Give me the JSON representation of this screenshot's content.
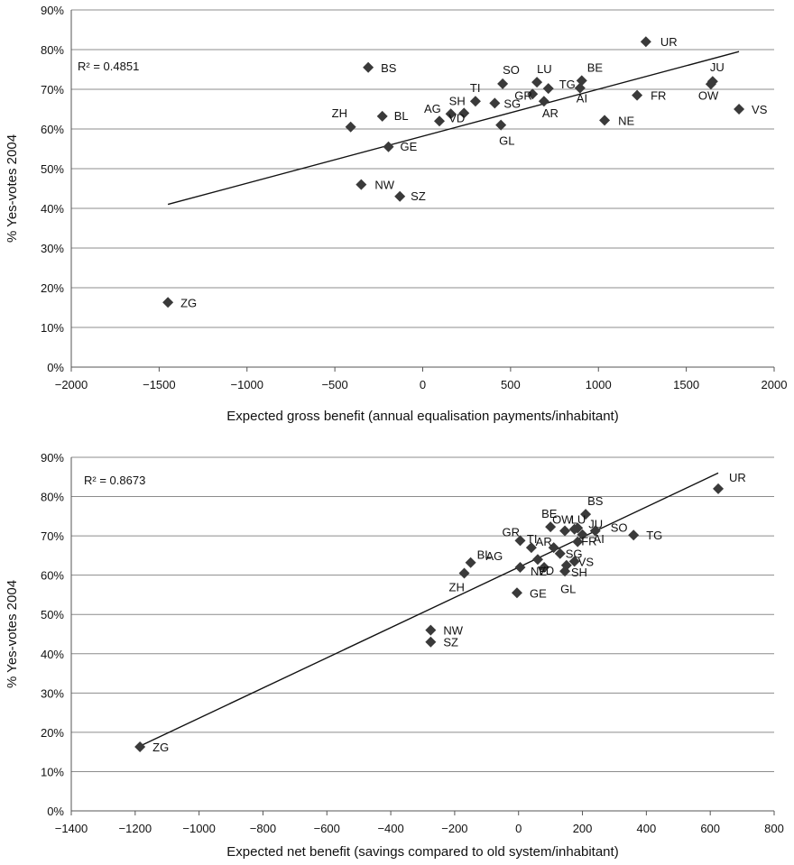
{
  "chart_data": [
    {
      "type": "scatter",
      "title": "",
      "xlabel": "Expected gross benefit (annual equalisation payments/inhabitant)",
      "ylabel": "% Yes-votes 2004",
      "xlim": [
        -2000,
        2000
      ],
      "ylim": [
        0,
        90
      ],
      "xticks": [
        -2000,
        -1500,
        -1000,
        -500,
        0,
        500,
        1000,
        1500,
        2000
      ],
      "xtick_labels": [
        "−2000",
        "−1500",
        "−1000",
        "−500",
        "0",
        "500",
        "1000",
        "1500",
        "2000"
      ],
      "yticks": [
        0,
        10,
        20,
        30,
        40,
        50,
        60,
        70,
        80,
        90
      ],
      "ytick_labels": [
        "0%",
        "10%",
        "20%",
        "30%",
        "40%",
        "50%",
        "60%",
        "70%",
        "80%",
        "90%"
      ],
      "grid": true,
      "r2_label": "R² = 0.4851",
      "trendline": [
        [
          -1450,
          41.0
        ],
        [
          1800,
          79.5
        ]
      ],
      "points": [
        {
          "label": "UR",
          "x": 1270,
          "y": 82.0
        },
        {
          "label": "BS",
          "x": -310,
          "y": 75.5
        },
        {
          "label": "JU",
          "x": 1650,
          "y": 72.0
        },
        {
          "label": "OW",
          "x": 1640,
          "y": 71.3
        },
        {
          "label": "VS",
          "x": 1800,
          "y": 65.0
        },
        {
          "label": "BE",
          "x": 905,
          "y": 72.2
        },
        {
          "label": "LU",
          "x": 650,
          "y": 71.8
        },
        {
          "label": "SO",
          "x": 455,
          "y": 71.4
        },
        {
          "label": "TG",
          "x": 715,
          "y": 70.2
        },
        {
          "label": "AI",
          "x": 895,
          "y": 70.3
        },
        {
          "label": "GR",
          "x": 625,
          "y": 68.8
        },
        {
          "label": "FR",
          "x": 1220,
          "y": 68.5
        },
        {
          "label": "TI",
          "x": 300,
          "y": 67.0
        },
        {
          "label": "AR",
          "x": 690,
          "y": 67.0
        },
        {
          "label": "SG",
          "x": 410,
          "y": 66.5
        },
        {
          "label": "SH",
          "x": 160,
          "y": 63.8
        },
        {
          "label": "VD",
          "x": 235,
          "y": 64.0
        },
        {
          "label": "BL",
          "x": -230,
          "y": 63.2
        },
        {
          "label": "AG",
          "x": 95,
          "y": 62.0
        },
        {
          "label": "NE",
          "x": 1035,
          "y": 62.2
        },
        {
          "label": "GL",
          "x": 445,
          "y": 61.0
        },
        {
          "label": "ZH",
          "x": -410,
          "y": 60.5
        },
        {
          "label": "GE",
          "x": -195,
          "y": 55.5
        },
        {
          "label": "NW",
          "x": -350,
          "y": 46.0
        },
        {
          "label": "SZ",
          "x": -130,
          "y": 43.0
        },
        {
          "label": "ZG",
          "x": -1450,
          "y": 16.3
        }
      ]
    },
    {
      "type": "scatter",
      "title": "",
      "xlabel": "Expected net benefit (savings compared to old system/inhabitant)",
      "ylabel": "% Yes-votes 2004",
      "xlim": [
        -1400,
        800
      ],
      "ylim": [
        0,
        90
      ],
      "xticks": [
        -1400,
        -1200,
        -1000,
        -800,
        -600,
        -400,
        -200,
        0,
        200,
        400,
        600,
        800
      ],
      "xtick_labels": [
        "−1400",
        "−1200",
        "−1000",
        "−800",
        "−600",
        "−400",
        "−200",
        "0",
        "200",
        "400",
        "600",
        "800"
      ],
      "yticks": [
        0,
        10,
        20,
        30,
        40,
        50,
        60,
        70,
        80,
        90
      ],
      "ytick_labels": [
        "0%",
        "10%",
        "20%",
        "30%",
        "40%",
        "50%",
        "60%",
        "70%",
        "80%",
        "90%"
      ],
      "grid": true,
      "r2_label": "R² = 0.8673",
      "trendline": [
        [
          -1185,
          16.5
        ],
        [
          625,
          86.0
        ]
      ],
      "points": [
        {
          "label": "UR",
          "x": 625,
          "y": 82.0
        },
        {
          "label": "BS",
          "x": 210,
          "y": 75.5
        },
        {
          "label": "BE",
          "x": 100,
          "y": 72.3
        },
        {
          "label": "JU",
          "x": 185,
          "y": 72.0
        },
        {
          "label": "OW",
          "x": 145,
          "y": 71.3
        },
        {
          "label": "LU",
          "x": 175,
          "y": 71.7
        },
        {
          "label": "SO",
          "x": 240,
          "y": 71.3
        },
        {
          "label": "AI",
          "x": 200,
          "y": 70.3
        },
        {
          "label": "TG",
          "x": 360,
          "y": 70.2
        },
        {
          "label": "GR",
          "x": 5,
          "y": 68.8
        },
        {
          "label": "FR",
          "x": 185,
          "y": 68.5
        },
        {
          "label": "AR",
          "x": 110,
          "y": 67.0
        },
        {
          "label": "TI",
          "x": 40,
          "y": 67.0
        },
        {
          "label": "SG",
          "x": 130,
          "y": 65.5
        },
        {
          "label": "VS",
          "x": 175,
          "y": 63.5
        },
        {
          "label": "SH",
          "x": 150,
          "y": 62.5
        },
        {
          "label": "VD",
          "x": 80,
          "y": 62.0
        },
        {
          "label": "BL",
          "x": -150,
          "y": 63.2
        },
        {
          "label": "AG",
          "x": 5,
          "y": 62.0
        },
        {
          "label": "NE",
          "x": 60,
          "y": 64.0
        },
        {
          "label": "GL",
          "x": 145,
          "y": 61.0
        },
        {
          "label": "ZH",
          "x": -170,
          "y": 60.5
        },
        {
          "label": "GE",
          "x": -5,
          "y": 55.5
        },
        {
          "label": "NW",
          "x": -275,
          "y": 46.0
        },
        {
          "label": "SZ",
          "x": -275,
          "y": 43.0
        },
        {
          "label": "ZG",
          "x": -1185,
          "y": 16.3
        }
      ]
    }
  ]
}
